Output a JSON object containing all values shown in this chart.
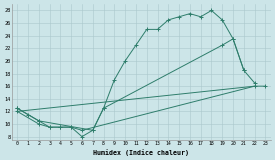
{
  "background_color": "#cce5e8",
  "grid_color": "#aac8cc",
  "line_color": "#2e7d6b",
  "xlabel": "Humidex (Indice chaleur)",
  "xlim": [
    -0.5,
    23.5
  ],
  "ylim": [
    7.5,
    29
  ],
  "xticks": [
    0,
    1,
    2,
    3,
    4,
    5,
    6,
    7,
    8,
    9,
    10,
    11,
    12,
    13,
    14,
    15,
    16,
    17,
    18,
    19,
    20,
    21,
    22,
    23
  ],
  "yticks": [
    8,
    10,
    12,
    14,
    16,
    18,
    20,
    22,
    24,
    26,
    28
  ],
  "line1_x": [
    0,
    1,
    2,
    3,
    4,
    5,
    6,
    7,
    8,
    9,
    10,
    11,
    12,
    13,
    14,
    15,
    16,
    17,
    18,
    19,
    20,
    21
  ],
  "line1_y": [
    12.5,
    11.5,
    10.5,
    9.5,
    9.5,
    9.5,
    8.0,
    9.0,
    12.5,
    17.0,
    20.0,
    22.5,
    25.0,
    25.0,
    26.5,
    27.0,
    27.5,
    27.0,
    28.0,
    26.5,
    23.5,
    18.5
  ],
  "line2_x": [
    0,
    2,
    7,
    8,
    19,
    20,
    21,
    22
  ],
  "line2_y": [
    12.5,
    10.5,
    9.0,
    12.5,
    22.5,
    23.5,
    18.5,
    16.5
  ],
  "line3_x": [
    0,
    2,
    3,
    4,
    5,
    6,
    22,
    23
  ],
  "line3_y": [
    12.0,
    10.0,
    9.5,
    9.5,
    9.5,
    9.0,
    16.0,
    16.0
  ],
  "line4_x": [
    0,
    22
  ],
  "line4_y": [
    12.0,
    16.0
  ]
}
